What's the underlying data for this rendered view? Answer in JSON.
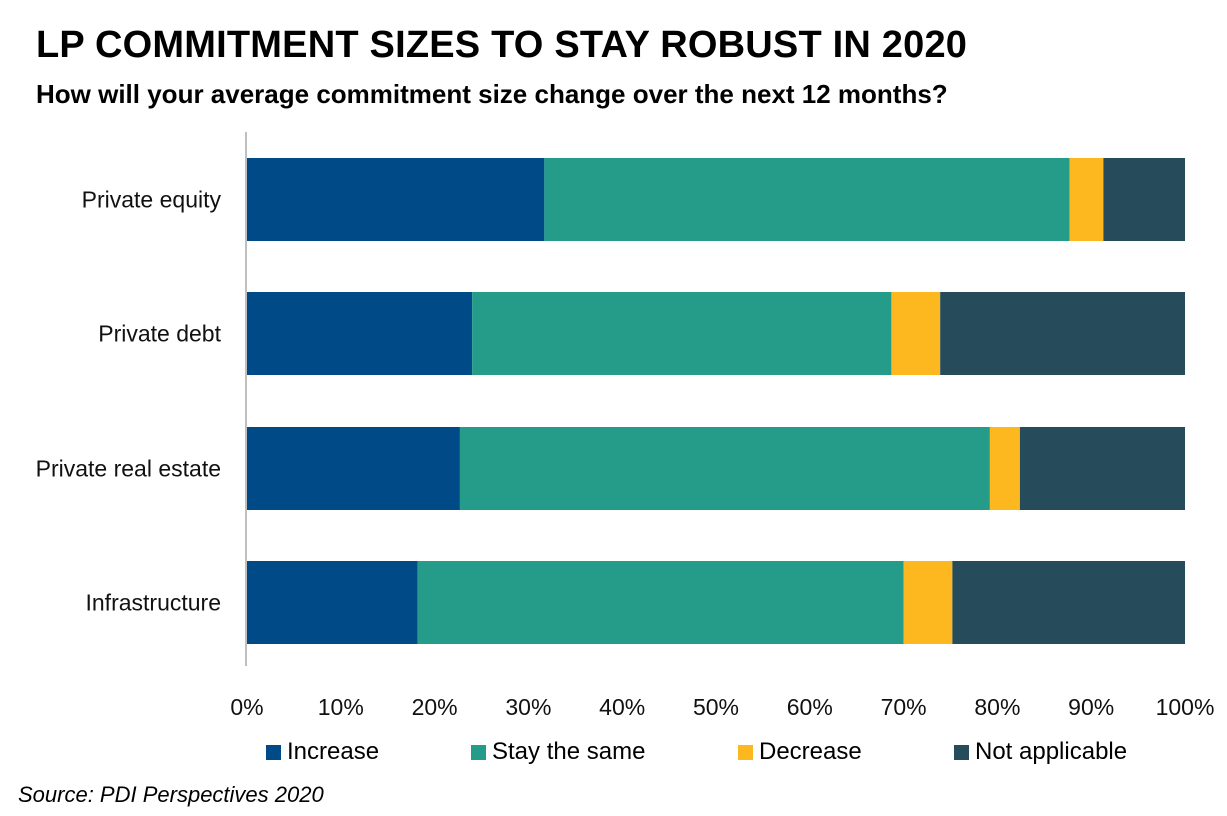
{
  "chart_data": {
    "type": "bar",
    "orientation": "horizontal",
    "stacked": true,
    "title": "LP COMMITMENT SIZES TO STAY ROBUST IN 2020",
    "subtitle": "How will your average commitment size change over the next 12 months?",
    "categories": [
      "Private equity",
      "Private debt",
      "Private real estate",
      "Infrastructure"
    ],
    "series": [
      {
        "name": "Increase",
        "color": "#004A87",
        "values": [
          31.7,
          24.0,
          22.7,
          18.2
        ]
      },
      {
        "name": "Stay the same",
        "color": "#259B8A",
        "values": [
          56.0,
          44.7,
          56.5,
          51.8
        ]
      },
      {
        "name": "Decrease",
        "color": "#FCB81E",
        "values": [
          3.6,
          5.2,
          3.2,
          5.2
        ]
      },
      {
        "name": "Not applicable",
        "color": "#264C5C",
        "values": [
          8.7,
          26.1,
          17.6,
          24.8
        ]
      }
    ],
    "xlim": [
      0,
      100
    ],
    "xticks": [
      "0%",
      "10%",
      "20%",
      "30%",
      "40%",
      "50%",
      "60%",
      "70%",
      "80%",
      "90%",
      "100%"
    ],
    "grid": false,
    "legend_position": "bottom",
    "source": "Source: PDI Perspectives 2020"
  }
}
